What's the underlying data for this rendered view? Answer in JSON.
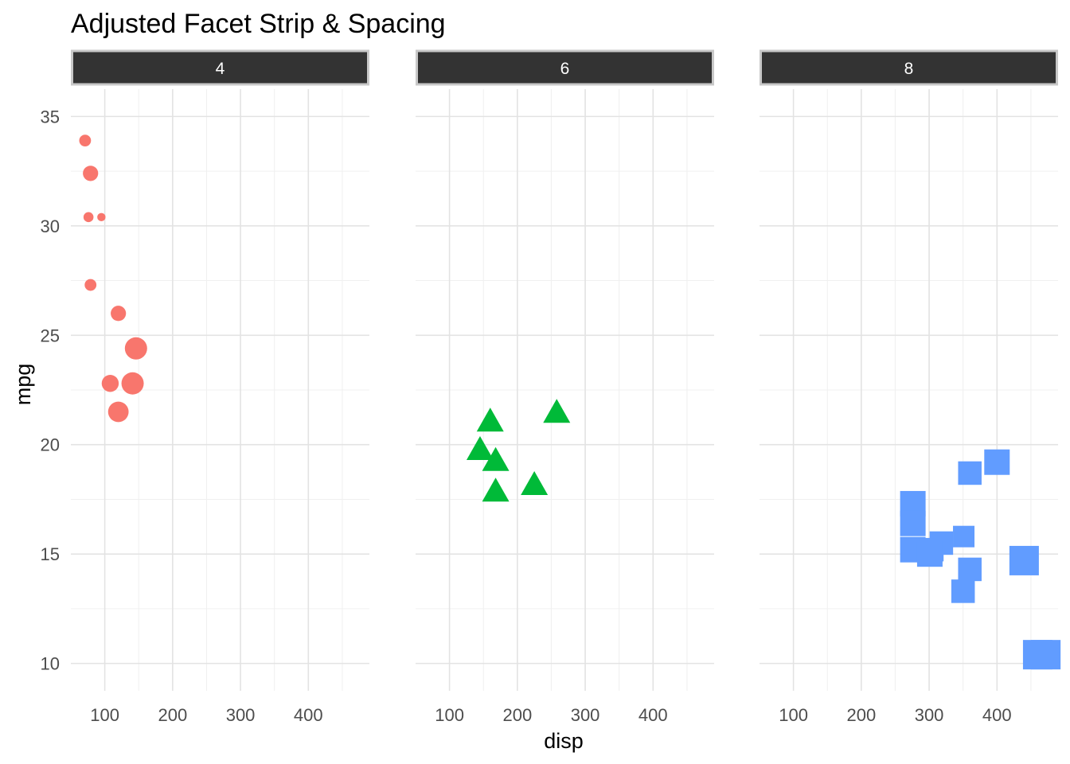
{
  "chart_data": {
    "type": "scatter",
    "title": "Adjusted Facet Strip & Spacing",
    "xlabel": "disp",
    "ylabel": "mpg",
    "xlim": [
      50,
      490
    ],
    "ylim": [
      8.75,
      36.25
    ],
    "x_ticks": [
      100,
      200,
      300,
      400
    ],
    "y_ticks": [
      10,
      15,
      20,
      25,
      30,
      35
    ],
    "grid": true,
    "legend": "none",
    "facets": [
      {
        "label": "4",
        "color": "#F8766D",
        "shape": "circle",
        "points": [
          {
            "x": 71,
            "y": 33.9,
            "size": 2
          },
          {
            "x": 79,
            "y": 32.4,
            "size": 3
          },
          {
            "x": 76,
            "y": 30.4,
            "size": 1.5
          },
          {
            "x": 95,
            "y": 30.4,
            "size": 1
          },
          {
            "x": 79,
            "y": 27.3,
            "size": 2
          },
          {
            "x": 120,
            "y": 26.0,
            "size": 3
          },
          {
            "x": 146,
            "y": 24.4,
            "size": 5
          },
          {
            "x": 108,
            "y": 22.8,
            "size": 3.5
          },
          {
            "x": 141,
            "y": 22.8,
            "size": 5
          },
          {
            "x": 120,
            "y": 21.5,
            "size": 4.5
          }
        ]
      },
      {
        "label": "6",
        "color": "#00BA38",
        "shape": "triangle",
        "points": [
          {
            "x": 160,
            "y": 21.0,
            "size": 4
          },
          {
            "x": 258,
            "y": 21.4,
            "size": 4
          },
          {
            "x": 145,
            "y": 19.7,
            "size": 4
          },
          {
            "x": 168,
            "y": 19.2,
            "size": 4
          },
          {
            "x": 168,
            "y": 17.8,
            "size": 4
          },
          {
            "x": 225,
            "y": 18.1,
            "size": 4
          }
        ]
      },
      {
        "label": "8",
        "color": "#619CFF",
        "shape": "square",
        "points": [
          {
            "x": 400,
            "y": 19.2,
            "size": 4
          },
          {
            "x": 360,
            "y": 18.7,
            "size": 3.5
          },
          {
            "x": 276,
            "y": 17.3,
            "size": 4
          },
          {
            "x": 276,
            "y": 16.4,
            "size": 4
          },
          {
            "x": 351,
            "y": 15.8,
            "size": 3
          },
          {
            "x": 318,
            "y": 15.5,
            "size": 3.5
          },
          {
            "x": 276,
            "y": 15.2,
            "size": 4
          },
          {
            "x": 304,
            "y": 15.2,
            "size": 3.5
          },
          {
            "x": 301,
            "y": 15.0,
            "size": 4
          },
          {
            "x": 440,
            "y": 14.7,
            "size": 5
          },
          {
            "x": 360,
            "y": 14.3,
            "size": 3.5
          },
          {
            "x": 350,
            "y": 13.3,
            "size": 3.5
          },
          {
            "x": 472,
            "y": 10.4,
            "size": 5
          },
          {
            "x": 460,
            "y": 10.4,
            "size": 5
          }
        ]
      }
    ]
  }
}
